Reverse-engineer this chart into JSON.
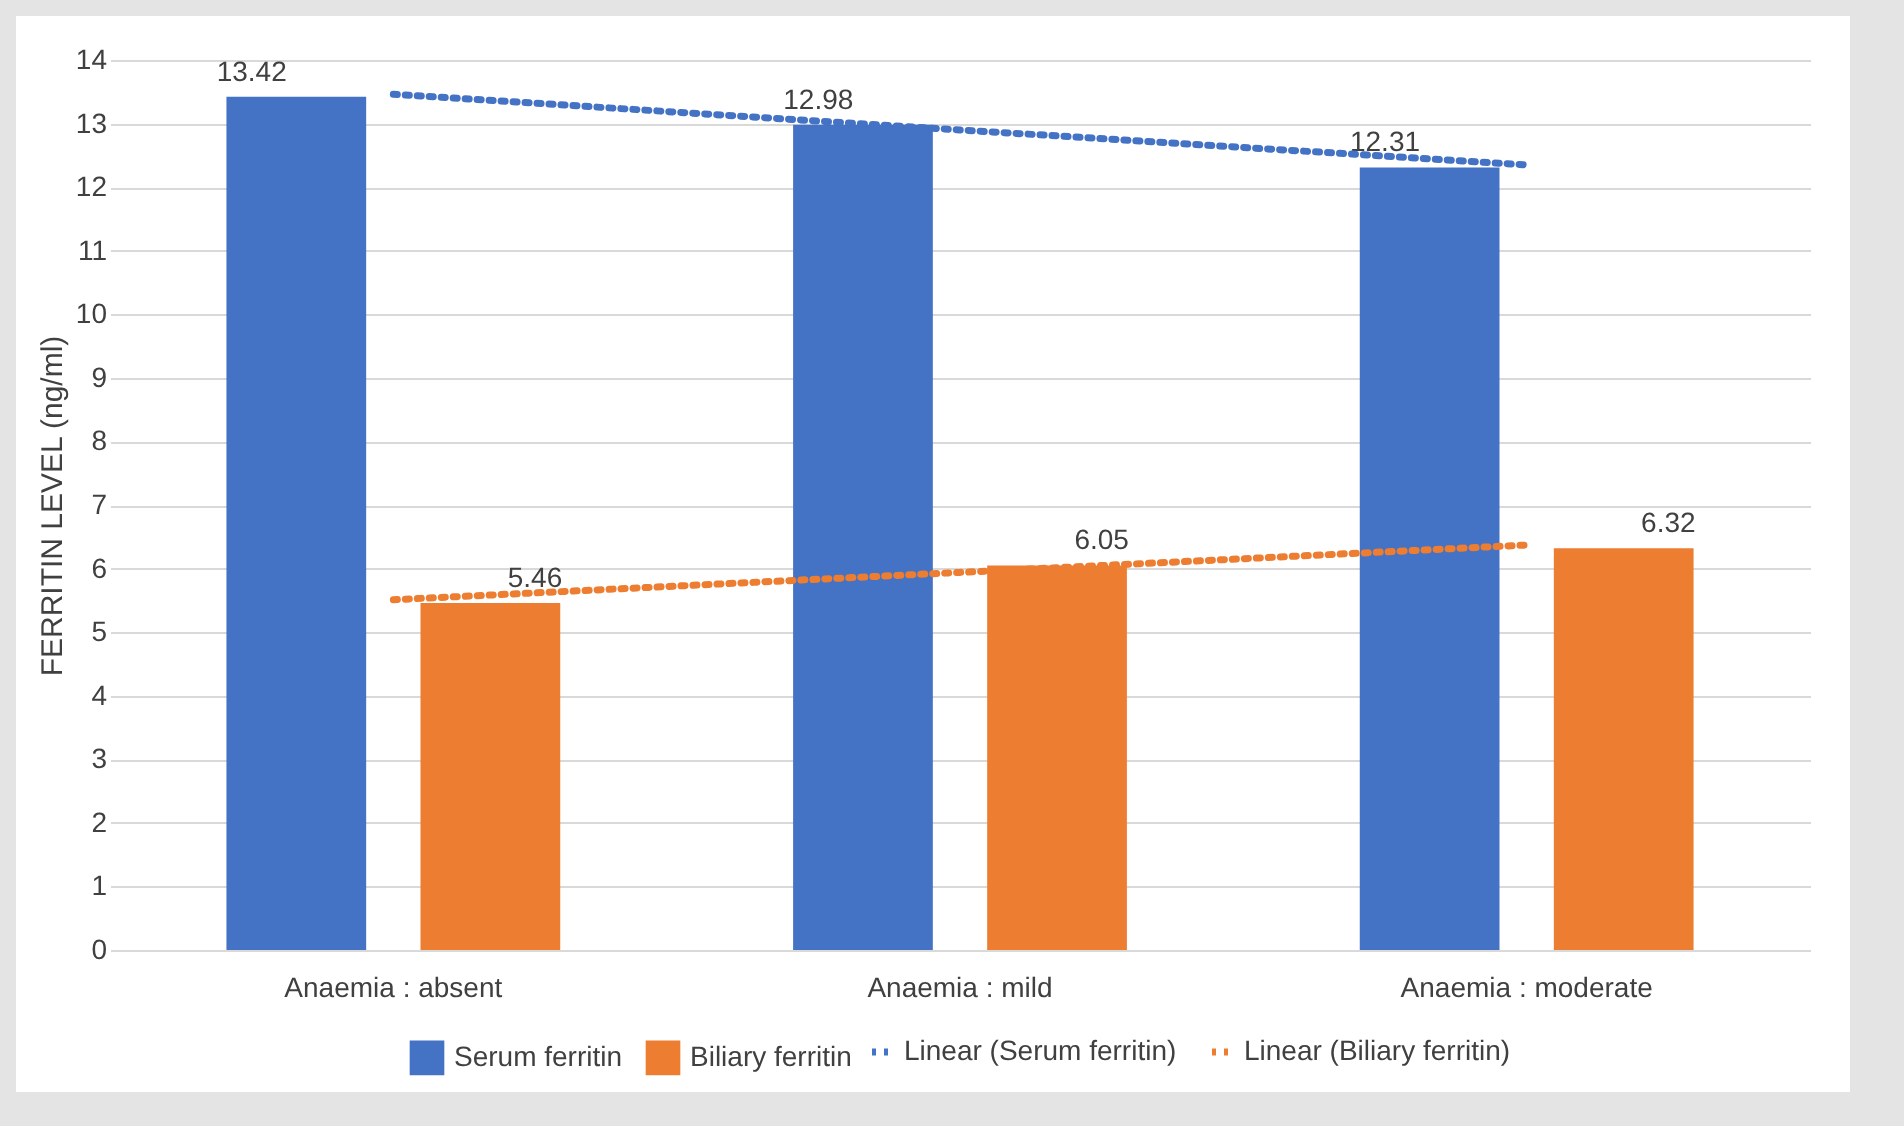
{
  "chart_data": {
    "type": "bar",
    "ylabel": "FERRITIN LEVEL (ng/ml)",
    "categories": [
      "Anaemia : absent",
      "Anaemia : mild",
      "Anaemia : moderate"
    ],
    "series": [
      {
        "name": "Serum ferritin",
        "color": "#4472c4",
        "values": [
          13.42,
          12.98,
          12.31
        ],
        "value_labels": [
          "13.42",
          "12.98",
          "12.31"
        ]
      },
      {
        "name": "Biliary ferritin",
        "color": "#ed7d31",
        "values": [
          5.46,
          6.05,
          6.32
        ],
        "value_labels": [
          "5.46",
          "6.05",
          "6.32"
        ]
      },
      {
        "name": "Linear (Serum ferritin)",
        "type": "line",
        "line_style": "dotted",
        "color": "#4472c4",
        "x": [
          "Anaemia : absent",
          "Anaemia : mild",
          "Anaemia : moderate"
        ],
        "values": [
          13.46,
          12.9,
          12.35
        ]
      },
      {
        "name": "Linear (Biliary ferritin)",
        "type": "line",
        "line_style": "dotted",
        "color": "#ed7d31",
        "x": [
          "Anaemia : absent",
          "Anaemia : mild",
          "Anaemia : moderate"
        ],
        "values": [
          5.51,
          5.94,
          6.37
        ]
      }
    ],
    "ylim": [
      0,
      14
    ],
    "yticks": [
      0,
      1,
      2,
      3,
      4,
      5,
      6,
      7,
      8,
      9,
      10,
      11,
      12,
      13,
      14
    ],
    "grid": "y",
    "legend": "bottom"
  }
}
